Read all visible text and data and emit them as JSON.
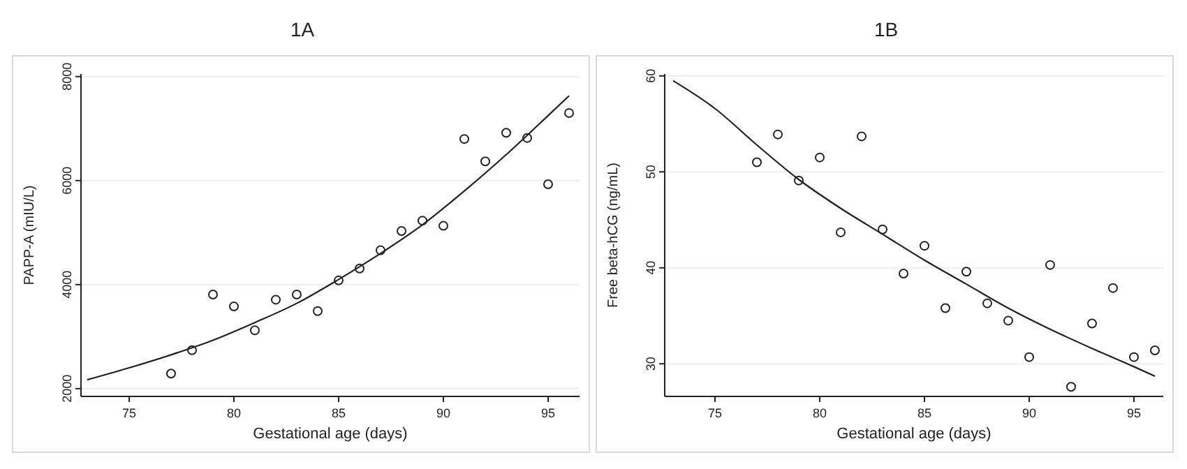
{
  "chart_data": [
    {
      "type": "scatter",
      "title": "1A",
      "xlabel": "Gestational age (days)",
      "ylabel": "PAPP-A (mIU/L)",
      "xlim": [
        72.7,
        96.5
      ],
      "xticks": [
        75,
        80,
        85,
        90,
        95
      ],
      "ylim": [
        1850,
        8050
      ],
      "yticks": [
        2000,
        4000,
        6000,
        8000
      ],
      "grid": "y",
      "marker": "circle",
      "series": [
        {
          "color": "#222222",
          "x": [
            77,
            78,
            79,
            80,
            81,
            82,
            83,
            84,
            85,
            86,
            87,
            88,
            89,
            90,
            91,
            92,
            93,
            94,
            95,
            96
          ],
          "values": [
            2290,
            2740,
            3810,
            3580,
            3120,
            3710,
            3810,
            3490,
            4080,
            4310,
            4660,
            5030,
            5230,
            5130,
            6800,
            6370,
            6920,
            6820,
            5930,
            7300
          ]
        },
        {
          "type": "line",
          "color": "#222222",
          "marker": "none",
          "line_style": "solid",
          "x": [
            73,
            75,
            77,
            79,
            81,
            83,
            85,
            87,
            89,
            91,
            93,
            95,
            96
          ],
          "values": [
            2170,
            2400,
            2650,
            2930,
            3270,
            3640,
            4100,
            4600,
            5150,
            5800,
            6500,
            7250,
            7630
          ]
        }
      ]
    },
    {
      "type": "scatter",
      "title": "1B",
      "xlabel": "Gestational age (days)",
      "ylabel": "Free beta-hCG (ng/mL)",
      "xlim": [
        72.6,
        96.4
      ],
      "xticks": [
        75,
        80,
        85,
        90,
        95
      ],
      "ylim": [
        26.6,
        60.2
      ],
      "yticks": [
        30,
        40,
        50,
        60
      ],
      "grid": "y",
      "marker": "circle",
      "series": [
        {
          "color": "#222222",
          "x": [
            77,
            78,
            79,
            80,
            81,
            82,
            83,
            84,
            85,
            86,
            87,
            88,
            89,
            90,
            91,
            92,
            93,
            94,
            95,
            96
          ],
          "values": [
            51.0,
            53.9,
            49.1,
            51.5,
            43.7,
            53.7,
            44.0,
            39.4,
            42.3,
            35.8,
            39.6,
            36.3,
            34.5,
            30.7,
            40.3,
            27.6,
            34.2,
            37.9,
            30.7,
            31.4
          ]
        },
        {
          "type": "line",
          "color": "#222222",
          "marker": "none",
          "line_style": "solid",
          "x": [
            73,
            75,
            77,
            79,
            81,
            83,
            85,
            87,
            89,
            91,
            93,
            95,
            96
          ],
          "values": [
            59.5,
            56.6,
            52.8,
            49.2,
            46.2,
            43.5,
            40.8,
            38.3,
            35.8,
            33.6,
            31.6,
            29.7,
            28.7
          ]
        }
      ]
    }
  ]
}
